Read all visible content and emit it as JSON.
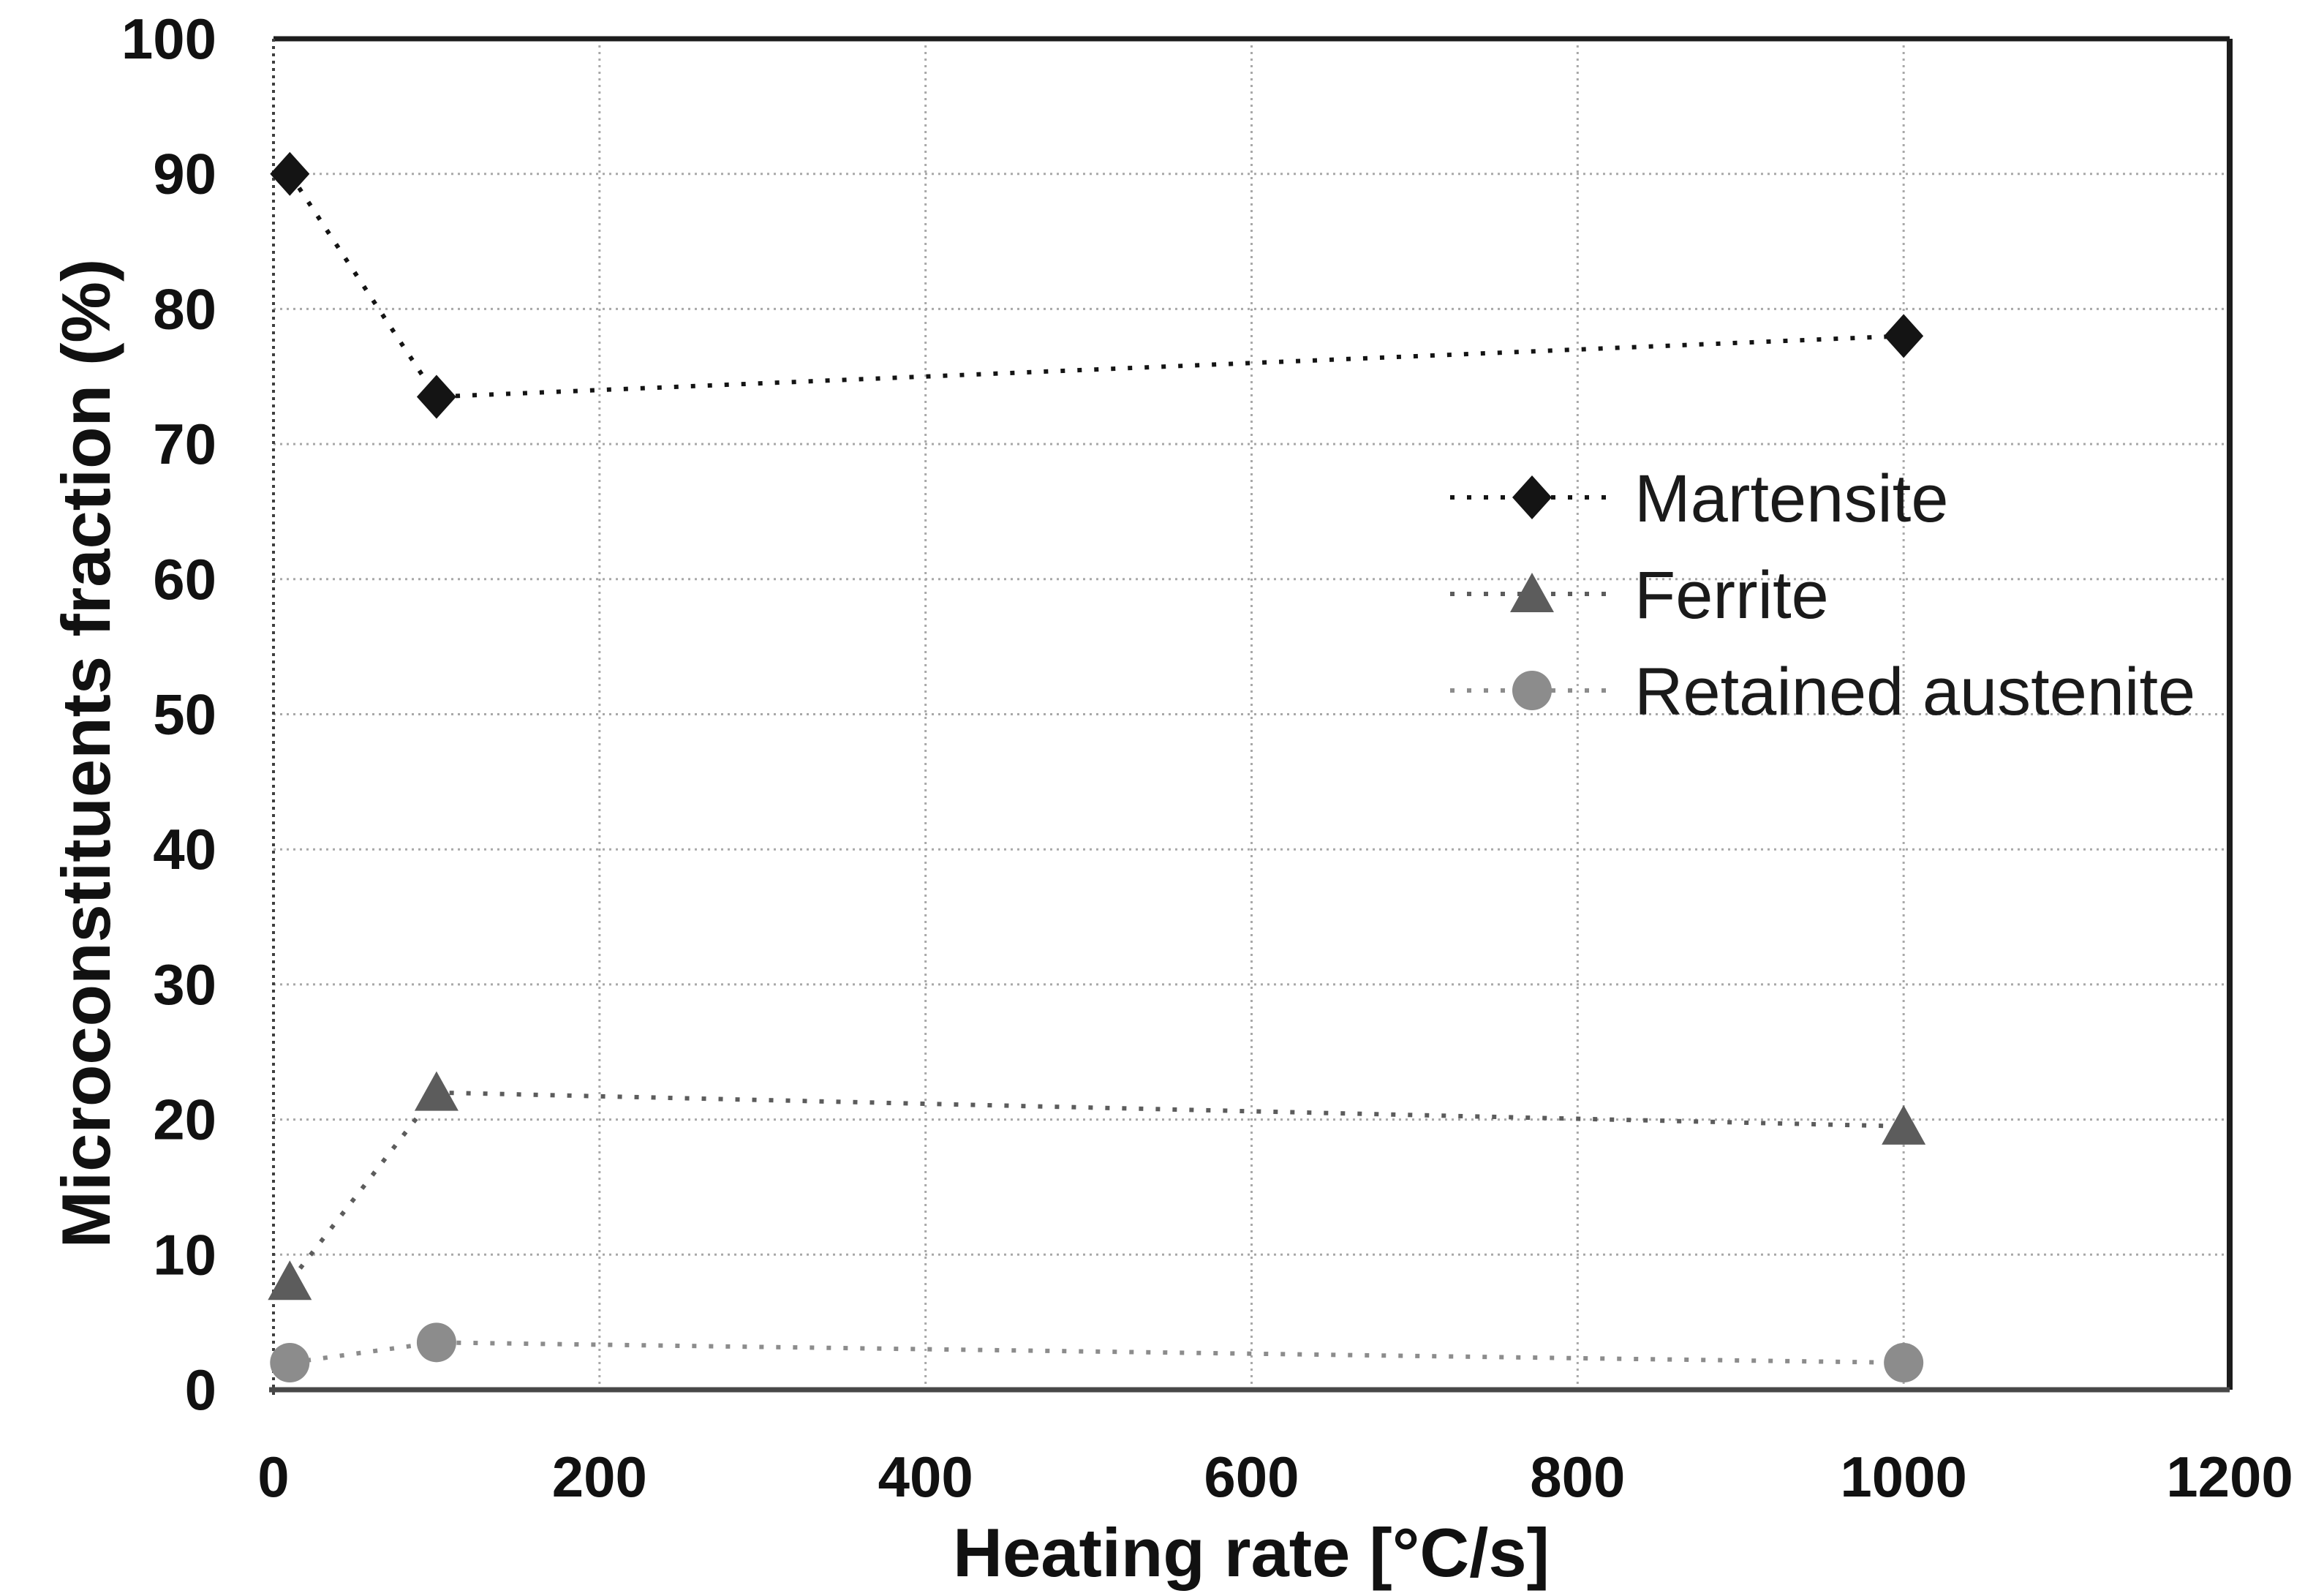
{
  "chart_data": {
    "type": "line",
    "title": "",
    "xlabel": "Heating rate [°C/s]",
    "ylabel": "Microconstituents fraction (%)",
    "xlim": [
      0,
      1200
    ],
    "ylim": [
      0,
      100
    ],
    "x_ticks": [
      0,
      200,
      400,
      600,
      800,
      1000,
      1200
    ],
    "y_ticks": [
      0,
      10,
      20,
      30,
      40,
      50,
      60,
      70,
      80,
      90,
      100
    ],
    "grid": {
      "horizontal_step": 10,
      "vertical_step": 200,
      "style": "dotted",
      "color": "#a8a8a8"
    },
    "line_style": "dotted",
    "legend_position": "inside-right",
    "x": [
      10,
      100,
      1000
    ],
    "series": [
      {
        "name": "Martensite",
        "marker": "diamond",
        "color": "#141414",
        "values": [
          90,
          73.5,
          78
        ]
      },
      {
        "name": "Ferrite",
        "marker": "triangle",
        "color": "#5c5c5c",
        "values": [
          8,
          22,
          19.5
        ]
      },
      {
        "name": "Retained austenite",
        "marker": "circle",
        "color": "#8c8c8c",
        "values": [
          2,
          3.5,
          2
        ]
      }
    ]
  }
}
